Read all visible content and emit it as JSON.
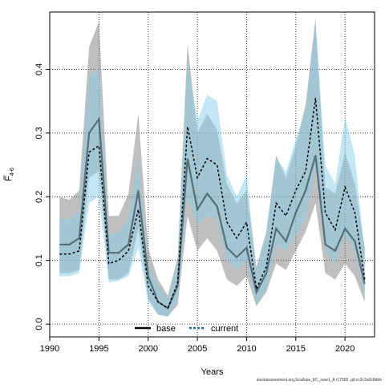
{
  "chart_data": {
    "type": "line",
    "title": "",
    "xlabel": "Years",
    "ylabel_main": "F",
    "ylabel_sub": "4-6",
    "xlim": [
      1990,
      2023
    ],
    "ylim": [
      -0.02,
      0.49
    ],
    "xticks": [
      1990,
      1995,
      2000,
      2005,
      2010,
      2015,
      2020
    ],
    "yticks": [
      0.0,
      0.1,
      0.2,
      0.3,
      0.4
    ],
    "ytick_labels": [
      "0.0",
      "0.1",
      "0.2",
      "0.3",
      "0.4"
    ],
    "grid": true,
    "legend_placement": "bottom-center",
    "x": [
      1991,
      1992,
      1993,
      1994,
      1995,
      1996,
      1997,
      1998,
      1999,
      2000,
      2001,
      2002,
      2003,
      2004,
      2005,
      2006,
      2007,
      2008,
      2009,
      2010,
      2011,
      2012,
      2013,
      2014,
      2015,
      2016,
      2017,
      2018,
      2019,
      2020,
      2021,
      2022
    ],
    "series": [
      {
        "name": "base",
        "style": "solid",
        "line_color": "#000000",
        "band_color": "#808080",
        "values": [
          0.125,
          0.125,
          0.135,
          0.3,
          0.322,
          0.112,
          0.112,
          0.125,
          0.21,
          0.075,
          0.035,
          0.025,
          0.06,
          0.26,
          0.18,
          0.205,
          0.185,
          0.12,
          0.105,
          0.12,
          0.05,
          0.08,
          0.15,
          0.13,
          0.175,
          0.21,
          0.265,
          0.125,
          0.115,
          0.15,
          0.13,
          0.063
        ],
        "lower": [
          0.08,
          0.08,
          0.085,
          0.23,
          0.24,
          0.07,
          0.07,
          0.08,
          0.15,
          0.04,
          0.015,
          0.012,
          0.03,
          0.17,
          0.115,
          0.135,
          0.115,
          0.07,
          0.06,
          0.075,
          0.028,
          0.05,
          0.095,
          0.085,
          0.115,
          0.145,
          0.19,
          0.08,
          0.07,
          0.095,
          0.075,
          0.035
        ],
        "upper": [
          0.2,
          0.195,
          0.21,
          0.435,
          0.475,
          0.17,
          0.17,
          0.205,
          0.33,
          0.12,
          0.07,
          0.045,
          0.105,
          0.44,
          0.3,
          0.33,
          0.305,
          0.22,
          0.19,
          0.21,
          0.09,
          0.145,
          0.265,
          0.23,
          0.28,
          0.345,
          0.48,
          0.215,
          0.205,
          0.27,
          0.22,
          0.12
        ]
      },
      {
        "name": "current",
        "style": "dashed",
        "line_color": "#000000",
        "band_color": "#87ceeb",
        "values": [
          0.11,
          0.11,
          0.115,
          0.27,
          0.28,
          0.095,
          0.1,
          0.115,
          0.18,
          0.06,
          0.035,
          0.025,
          0.065,
          0.31,
          0.23,
          0.26,
          0.25,
          0.16,
          0.135,
          0.16,
          0.055,
          0.09,
          0.19,
          0.17,
          0.21,
          0.24,
          0.355,
          0.175,
          0.148,
          0.215,
          0.175,
          0.07
        ],
        "lower": [
          0.075,
          0.075,
          0.08,
          0.19,
          0.2,
          0.065,
          0.068,
          0.075,
          0.12,
          0.035,
          0.015,
          0.012,
          0.035,
          0.2,
          0.155,
          0.17,
          0.165,
          0.1,
          0.085,
          0.1,
          0.03,
          0.055,
          0.125,
          0.115,
          0.14,
          0.165,
          0.245,
          0.115,
          0.095,
          0.14,
          0.115,
          0.04
        ],
        "upper": [
          0.165,
          0.165,
          0.175,
          0.39,
          0.4,
          0.14,
          0.145,
          0.165,
          0.26,
          0.095,
          0.06,
          0.04,
          0.1,
          0.415,
          0.32,
          0.36,
          0.35,
          0.235,
          0.2,
          0.235,
          0.085,
          0.14,
          0.26,
          0.24,
          0.29,
          0.335,
          0.475,
          0.25,
          0.22,
          0.325,
          0.265,
          0.11
        ]
      }
    ]
  },
  "footer_text": "stockassessment.org,Scallops_EC_new1_A r17565 ,git:cc2c2a0c8dde"
}
